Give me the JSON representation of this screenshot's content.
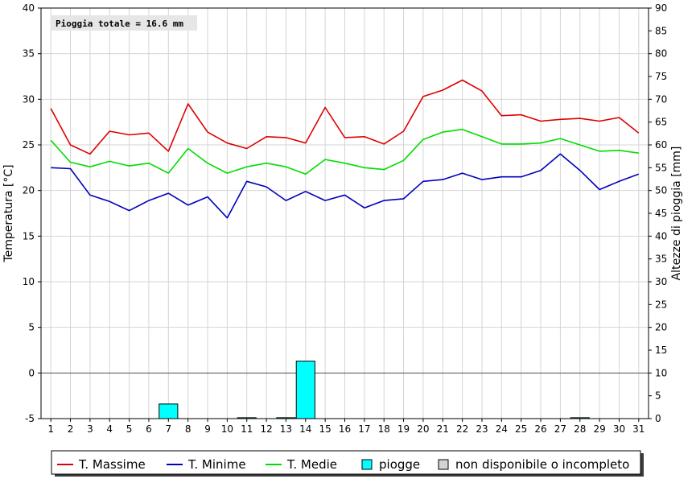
{
  "chart_data": {
    "type": "line",
    "note": "Pioggia totale = 16.6 mm",
    "ylabel_left": "Temperatura [°C]",
    "ylabel_right": "Altezze di pioggia [mm]",
    "ylim_left": [
      -5,
      40
    ],
    "ylim_right": [
      0,
      90
    ],
    "yticks_left": [
      -5,
      0,
      5,
      10,
      15,
      20,
      25,
      30,
      35,
      40
    ],
    "yticks_right": [
      0,
      5,
      10,
      15,
      20,
      25,
      30,
      35,
      40,
      45,
      50,
      55,
      60,
      65,
      70,
      75,
      80,
      85,
      90
    ],
    "categories": [
      "1",
      "2",
      "3",
      "4",
      "5",
      "6",
      "7",
      "8",
      "9",
      "10",
      "11",
      "12",
      "13",
      "14",
      "15",
      "16",
      "17",
      "18",
      "19",
      "20",
      "21",
      "22",
      "23",
      "24",
      "25",
      "26",
      "27",
      "28",
      "29",
      "30",
      "31"
    ],
    "grid": true,
    "legend_position": "bottom",
    "series": [
      {
        "name": "T. Massime",
        "color": "#dd0000",
        "axis": "left",
        "values": [
          29.0,
          25.0,
          24.0,
          26.5,
          26.1,
          26.3,
          24.3,
          29.5,
          26.4,
          25.2,
          24.6,
          25.9,
          25.8,
          25.2,
          29.1,
          25.8,
          25.9,
          25.1,
          26.5,
          30.3,
          31.0,
          32.1,
          30.9,
          28.2,
          28.3,
          27.6,
          27.8,
          27.9,
          27.6,
          28.0,
          26.3
        ]
      },
      {
        "name": "T. Minime",
        "color": "#0000bb",
        "axis": "left",
        "values": [
          22.5,
          22.4,
          19.5,
          18.8,
          17.8,
          18.9,
          19.7,
          18.4,
          19.3,
          17.0,
          21.0,
          20.4,
          18.9,
          19.9,
          18.9,
          19.5,
          18.1,
          18.9,
          19.1,
          21.0,
          21.2,
          21.9,
          21.2,
          21.5,
          21.5,
          22.2,
          24.0,
          22.2,
          20.1,
          21.0,
          21.8
        ]
      },
      {
        "name": "T. Medie",
        "color": "#00dd00",
        "axis": "left",
        "values": [
          25.5,
          23.1,
          22.6,
          23.2,
          22.7,
          23.0,
          21.9,
          24.6,
          23.0,
          21.9,
          22.6,
          23.0,
          22.6,
          21.8,
          23.4,
          23.0,
          22.5,
          22.3,
          23.3,
          25.6,
          26.4,
          26.7,
          25.9,
          25.1,
          25.1,
          25.2,
          25.7,
          25.0,
          24.3,
          24.4,
          24.1
        ]
      },
      {
        "name": "piogge",
        "color": "#00ffff",
        "axis": "right",
        "kind": "bar",
        "values": [
          0,
          0,
          0,
          0,
          0,
          0,
          3.2,
          0,
          0,
          0,
          0.2,
          0,
          0.2,
          12.6,
          0,
          0,
          0,
          0,
          0,
          0,
          0,
          0,
          0,
          0,
          0,
          0,
          0,
          0.2,
          0,
          0,
          0
        ]
      }
    ],
    "legend": [
      {
        "label": "T. Massime",
        "symbol": "line",
        "color": "#dd0000"
      },
      {
        "label": "T. Minime",
        "symbol": "line",
        "color": "#0000bb"
      },
      {
        "label": "T. Medie",
        "symbol": "line",
        "color": "#00dd00"
      },
      {
        "label": "piogge",
        "symbol": "box",
        "color": "#00ffff"
      },
      {
        "label": "non disponibile o incompleto",
        "symbol": "box",
        "color": "#d3d3d3"
      }
    ]
  }
}
